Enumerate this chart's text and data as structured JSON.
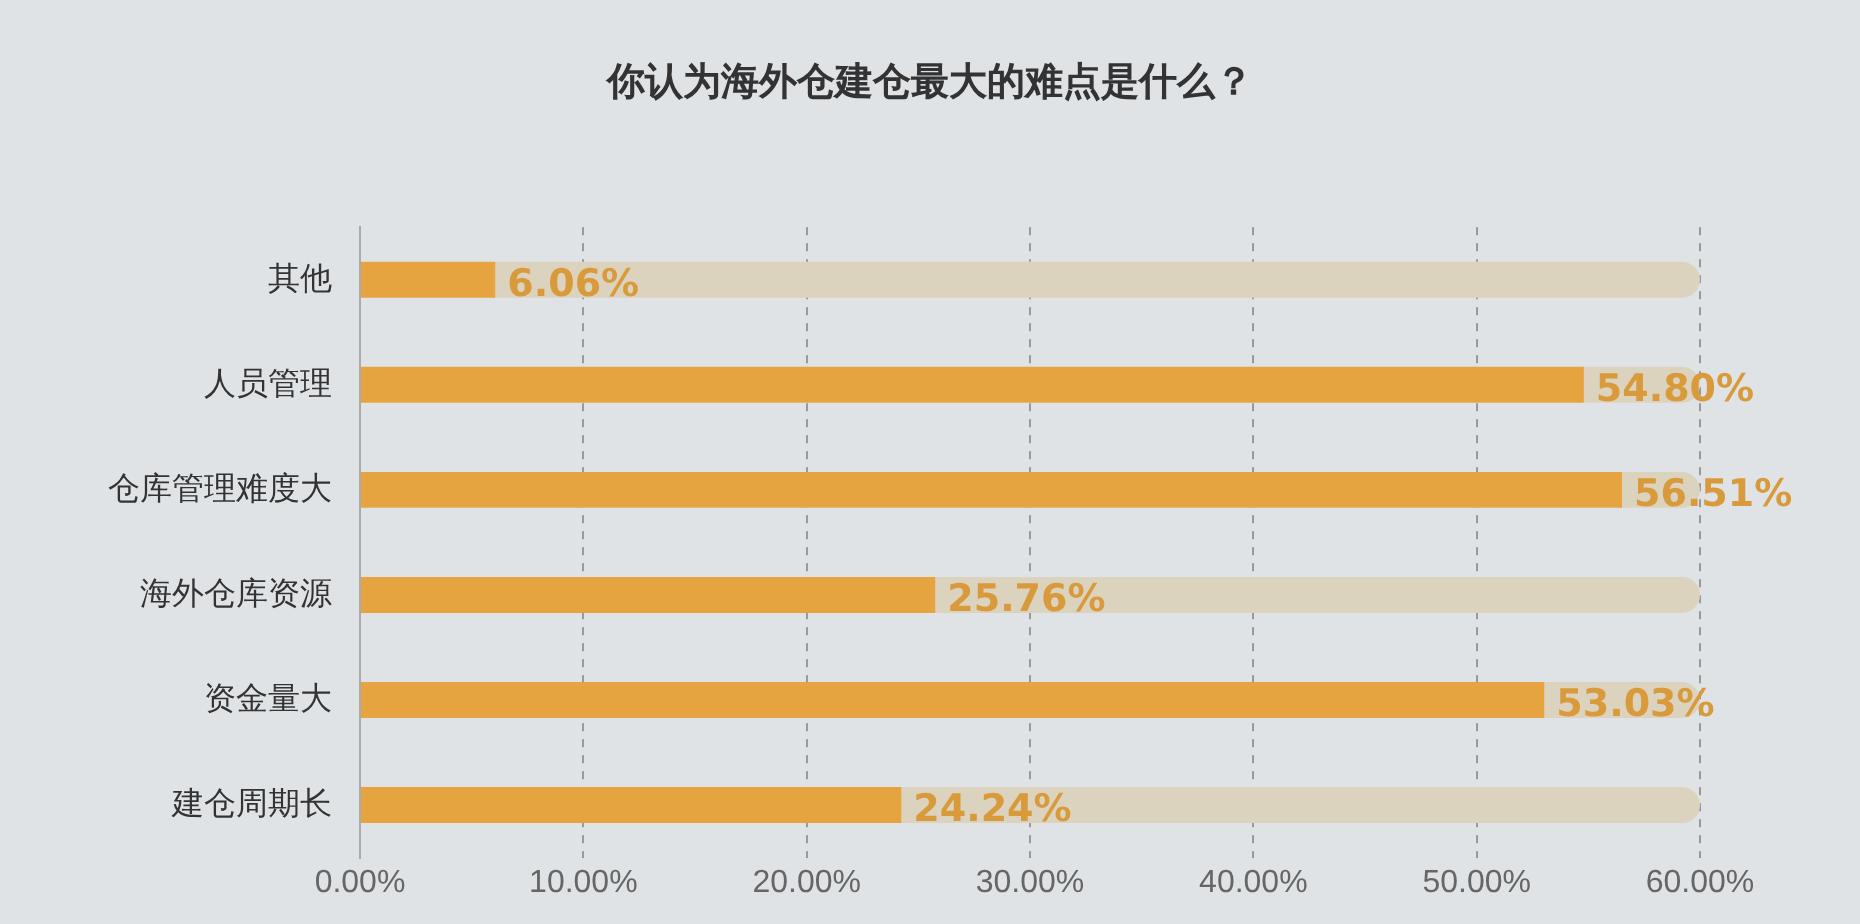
{
  "chart_data": {
    "type": "bar",
    "orientation": "horizontal",
    "title": "你认为海外仓建仓最大的难点是什么？",
    "categories": [
      "其他",
      "人员管理",
      "仓库管理难度大",
      "海外仓库资源",
      "资金量大",
      "建仓周期长"
    ],
    "series": [
      {
        "color": "#e5a440",
        "values": [
          6.06,
          54.8,
          56.51,
          25.76,
          53.03,
          24.24
        ],
        "value_labels": [
          "6.06%",
          "54.80%",
          "56.51%",
          "25.76%",
          "53.03%",
          "24.24%"
        ]
      },
      {
        "color": "#dcd3bf",
        "values": [
          53.94,
          5.2,
          3.49,
          34.24,
          6.97,
          35.76
        ]
      }
    ],
    "xlim": [
      0,
      60
    ],
    "xticks": [
      {
        "value": 0,
        "label": "0.00%"
      },
      {
        "value": 10,
        "label": "10.00%"
      },
      {
        "value": 20,
        "label": "20.00%"
      },
      {
        "value": 30,
        "label": "30.00%"
      },
      {
        "value": 40,
        "label": "40.00%"
      },
      {
        "value": 50,
        "label": "50.00%"
      },
      {
        "value": 60,
        "label": "60.00%"
      }
    ],
    "grid": "x",
    "legend": false,
    "stacked": true
  }
}
